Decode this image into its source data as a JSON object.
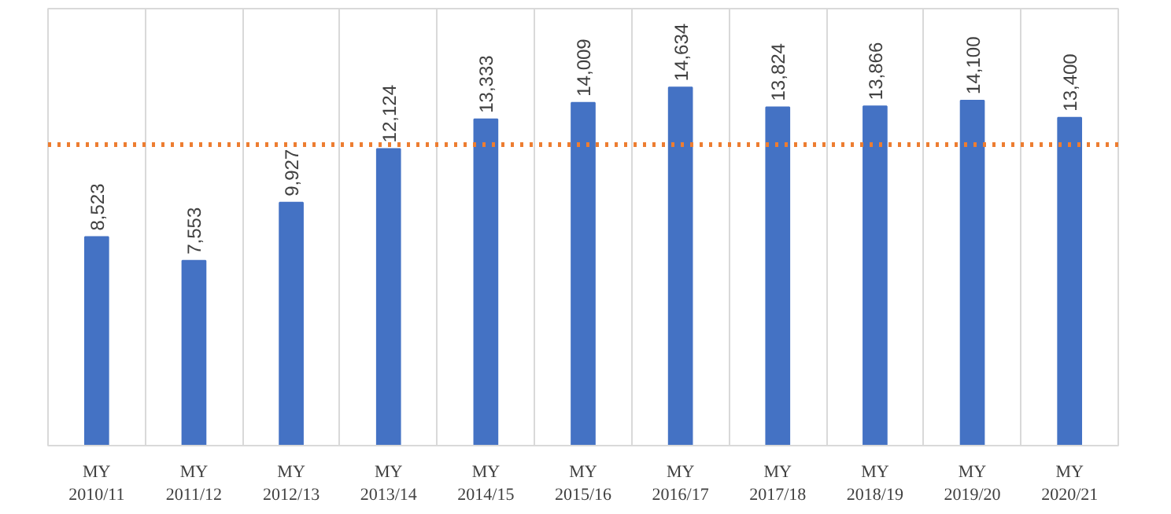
{
  "chart_data": {
    "type": "bar",
    "categories": [
      "MY\n2010/11",
      "MY\n2011/12",
      "MY\n2012/13",
      "MY\n2013/14",
      "MY\n2014/15",
      "MY\n2015/16",
      "MY\n2016/17",
      "MY\n2017/18",
      "MY\n2018/19",
      "MY\n2019/20",
      "MY\n2020/21"
    ],
    "values": [
      8523,
      7553,
      9927,
      12124,
      13333,
      14009,
      14634,
      13824,
      13866,
      14100,
      13400
    ],
    "color": "#4472c4",
    "value_labels": [
      "8,523",
      "7,553",
      "9,927",
      "12,124",
      "13,333",
      "14,009",
      "14,634",
      "13,824",
      "13,866",
      "14,100",
      "13,400"
    ],
    "ref_lines": [
      {
        "axis": "y",
        "value": 12300,
        "color": "#ed7d31",
        "line_style": "dotted"
      }
    ],
    "grid": "x",
    "tick_labels": "x"
  }
}
